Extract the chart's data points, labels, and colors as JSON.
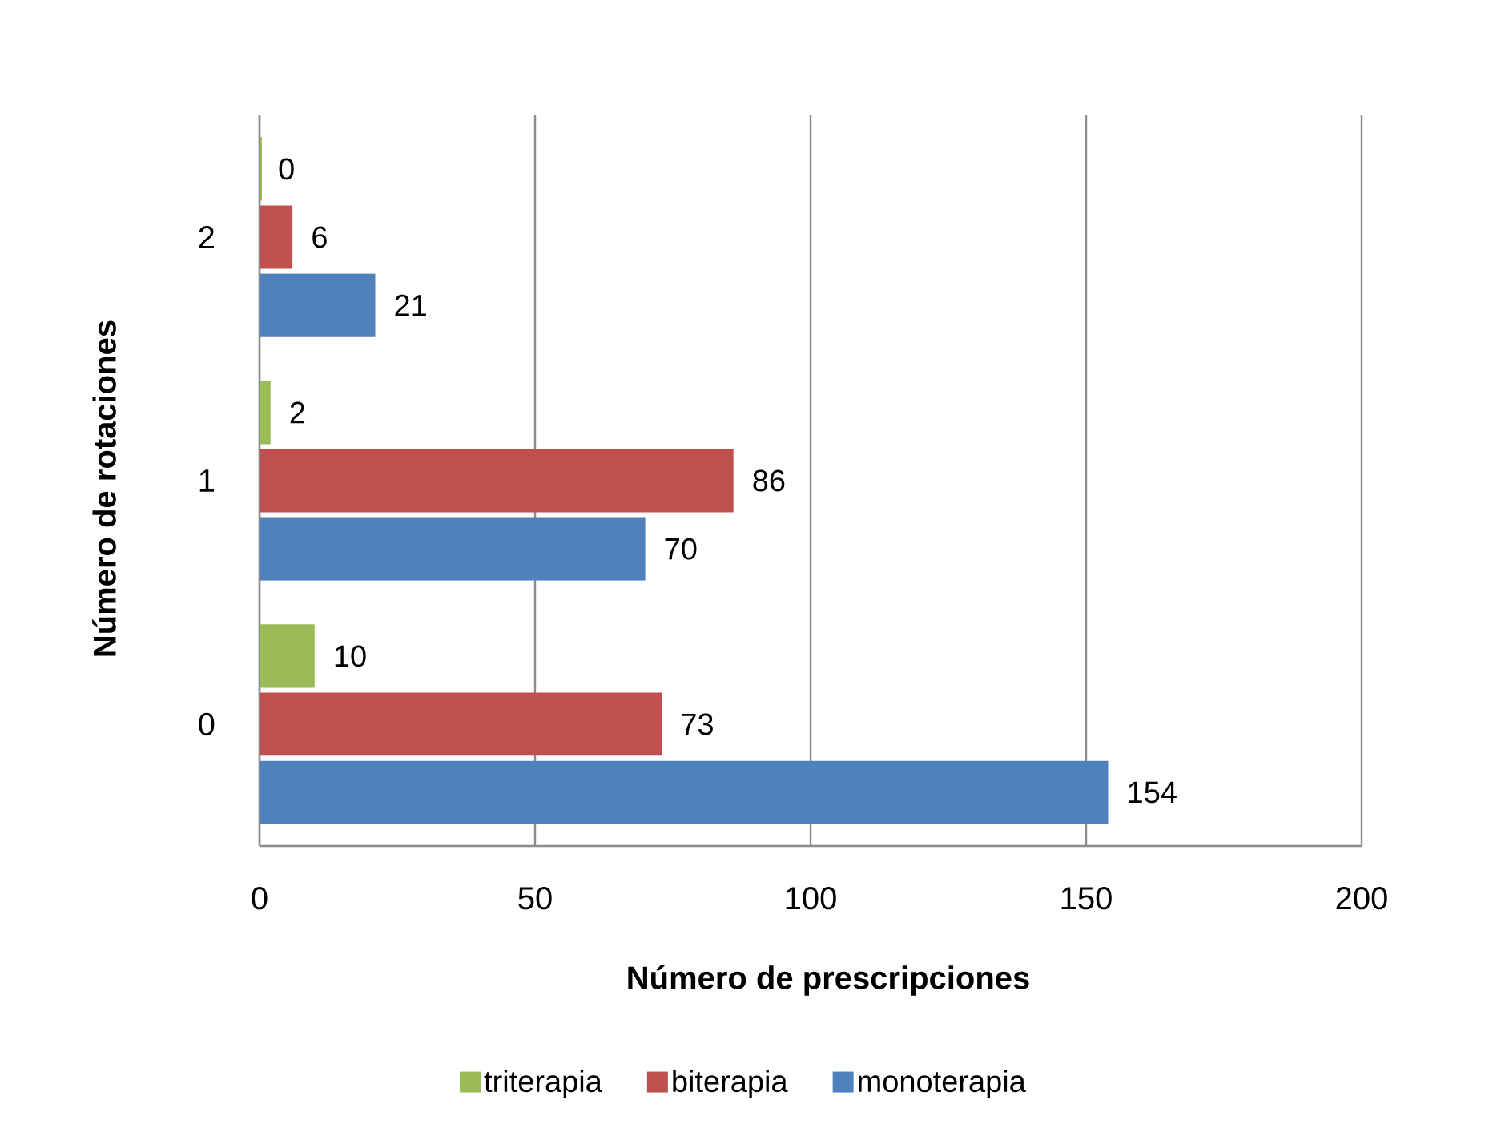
{
  "chart_data": {
    "type": "bar",
    "orientation": "horizontal",
    "xlabel": "Número de prescripciones",
    "ylabel": "Número de rotaciones",
    "categories": [
      "2",
      "1",
      "0"
    ],
    "series": [
      {
        "name": "triterapia",
        "color": "#9bbb59",
        "values": [
          0,
          2,
          10
        ]
      },
      {
        "name": "biterapia",
        "color": "#c0504d",
        "values": [
          6,
          86,
          73
        ]
      },
      {
        "name": "monoterapia",
        "color": "#4f81bd",
        "values": [
          21,
          70,
          154
        ]
      }
    ],
    "xlim": [
      0,
      200
    ],
    "xticks": [
      0,
      50,
      100,
      150,
      200
    ],
    "grid": "x",
    "legend": "bottom",
    "data_labels": true
  }
}
